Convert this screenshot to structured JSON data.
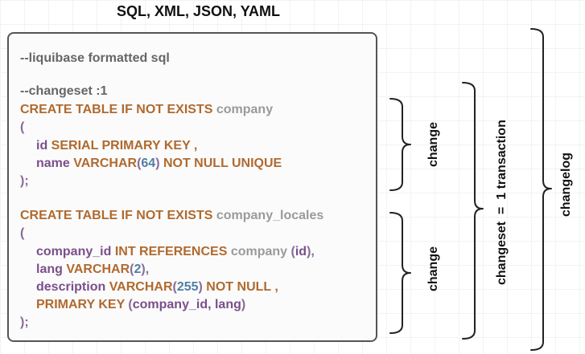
{
  "header": {
    "title": "SQL, XML, JSON, YAML"
  },
  "code": {
    "comment_title": "--liquibase formatted sql",
    "comment_changeset": "--changeset :1",
    "t1": {
      "keyword": "CREATE TABLE IF NOT EXISTS ",
      "name": "company",
      "open": "(",
      "row1": {
        "col": "id ",
        "type": "SERIAL PRIMARY KEY ,",
        "tail": ""
      },
      "row2": {
        "col": "name ",
        "type": "VARCHAR",
        "p1": "(",
        "num": "64",
        "p2": ")",
        "tail": " NOT NULL UNIQUE"
      },
      "close": ");"
    },
    "t2": {
      "keyword": "CREATE TABLE IF NOT EXISTS ",
      "name": "company_locales",
      "open": "(",
      "row1": {
        "col": "company_id ",
        "type": "INT REFERENCES ",
        "ref": "company ",
        "p1": "(",
        "refcol": "id",
        "p2": "),",
        "tail": ""
      },
      "row2": {
        "col": "lang ",
        "type": "VARCHAR",
        "p1": "(",
        "num": "2",
        "p2": "),",
        "tail": ""
      },
      "row3": {
        "col": "description ",
        "type": "VARCHAR",
        "p1": "(",
        "num": "255",
        "p2": ")",
        "tail": " NOT NULL ,"
      },
      "row4": {
        "type": "PRIMARY KEY ",
        "p1": "(",
        "cols": "company_id, lang",
        "p2": ")"
      },
      "close": ");"
    }
  },
  "labels": {
    "change1": "change",
    "change2": "change",
    "changeset": "changeset  =  1 transaction",
    "changelog": "changelog"
  }
}
